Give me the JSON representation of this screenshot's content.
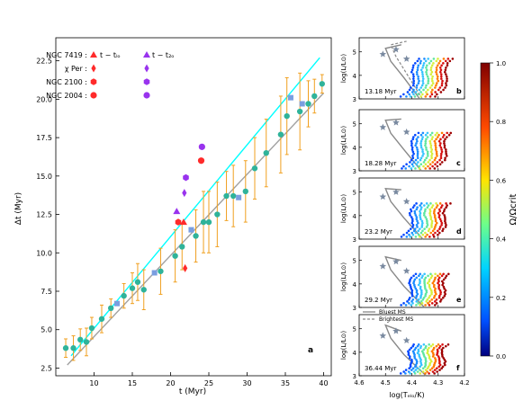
{
  "chart_data": [
    {
      "panel": "a",
      "type": "scatter",
      "xlabel": "t (Myr)",
      "ylabel": "Δt (Myr)",
      "xlim": [
        5,
        41
      ],
      "ylim": [
        2,
        24
      ],
      "xticks": [
        10,
        15,
        20,
        25,
        30,
        35,
        40
      ],
      "yticks": [
        2.5,
        5.0,
        7.5,
        10.0,
        12.5,
        15.0,
        17.5,
        20.0,
        22.5
      ],
      "grid": false,
      "legend_position": "top-left",
      "legend": {
        "rows": [
          {
            "label": "NGC 7419 :",
            "a": "t − tₗₒ",
            "b": "t − t₂ₒ"
          },
          {
            "label": "χ Per :",
            "a": "",
            "b": ""
          },
          {
            "label": "NGC 2100 :",
            "a": "",
            "b": ""
          },
          {
            "label": "NGC 2004 :",
            "a": "",
            "b": ""
          }
        ]
      },
      "lines": [
        {
          "name": "cyan",
          "color": "#00ffff",
          "x": [
            7,
            39.5
          ],
          "y": [
            3.3,
            22.7
          ]
        },
        {
          "name": "gray",
          "color": "#a0a0a0",
          "x": [
            6.5,
            40
          ],
          "y": [
            2.7,
            20.4
          ]
        }
      ],
      "points": [
        {
          "x": 6.3,
          "y": 3.8,
          "err": 0.6
        },
        {
          "x": 7.3,
          "y": 3.8,
          "err": 0.8
        },
        {
          "x": 8.2,
          "y": 4.35,
          "err": 0.7
        },
        {
          "x": 9.0,
          "y": 4.2,
          "err": 0.9
        },
        {
          "x": 9.7,
          "y": 5.1,
          "err": 0.7
        },
        {
          "x": 11.0,
          "y": 5.7,
          "err": 0.9
        },
        {
          "x": 12.2,
          "y": 6.4,
          "err": 0.6
        },
        {
          "x": 13.9,
          "y": 7.2,
          "err": 0.8
        },
        {
          "x": 15.0,
          "y": 7.7,
          "err": 1.0
        },
        {
          "x": 15.7,
          "y": 8.1,
          "err": 1.2
        },
        {
          "x": 16.5,
          "y": 7.6,
          "err": 1.3
        },
        {
          "x": 18.7,
          "y": 8.8,
          "err": 1.5
        },
        {
          "x": 20.6,
          "y": 9.8,
          "err": 1.7
        },
        {
          "x": 21.5,
          "y": 10.4,
          "err": 1.5
        },
        {
          "x": 23.3,
          "y": 11.1,
          "err": 1.7
        },
        {
          "x": 24.3,
          "y": 12.0,
          "err": 2.0
        },
        {
          "x": 25.0,
          "y": 12.0,
          "err": 2.0
        },
        {
          "x": 26.1,
          "y": 12.5,
          "err": 2.1
        },
        {
          "x": 27.3,
          "y": 13.7,
          "err": 1.6
        },
        {
          "x": 28.2,
          "y": 13.7,
          "err": 2.0
        },
        {
          "x": 29.8,
          "y": 14.0,
          "err": 2.0
        },
        {
          "x": 31.0,
          "y": 15.5,
          "err": 2.0
        },
        {
          "x": 32.5,
          "y": 16.5,
          "err": 2.2
        },
        {
          "x": 34.4,
          "y": 17.7,
          "err": 2.5
        },
        {
          "x": 35.2,
          "y": 18.9,
          "err": 2.5
        },
        {
          "x": 36.9,
          "y": 19.2,
          "err": 2.5
        },
        {
          "x": 38.0,
          "y": 19.7,
          "err": 1.5
        },
        {
          "x": 38.8,
          "y": 20.2,
          "err": 1.1
        },
        {
          "x": 39.8,
          "y": 21.0,
          "err": 0.6
        }
      ],
      "squares": [
        {
          "x": 13.0,
          "y": 6.7
        },
        {
          "x": 17.9,
          "y": 8.7
        },
        {
          "x": 22.7,
          "y": 11.5
        },
        {
          "x": 28.9,
          "y": 13.6
        },
        {
          "x": 35.7,
          "y": 20.1
        },
        {
          "x": 37.2,
          "y": 19.7
        }
      ],
      "markers": [
        {
          "shape": "triangle",
          "color": "#ff2a2a",
          "x": 21.7,
          "y": 12.0
        },
        {
          "shape": "triangle",
          "color": "#9933ee",
          "x": 20.8,
          "y": 12.7
        },
        {
          "shape": "diamond",
          "color": "#ff2a2a",
          "x": 21.9,
          "y": 9.0
        },
        {
          "shape": "diamond",
          "color": "#9933ee",
          "x": 21.8,
          "y": 13.9
        },
        {
          "shape": "hexagon",
          "color": "#ff2a2a",
          "x": 21.0,
          "y": 12.0
        },
        {
          "shape": "hexagon",
          "color": "#9933ee",
          "x": 22.0,
          "y": 14.9
        },
        {
          "shape": "circle",
          "color": "#ff2a2a",
          "x": 24.0,
          "y": 16.0
        },
        {
          "shape": "circle",
          "color": "#9933ee",
          "x": 24.1,
          "y": 16.9
        }
      ],
      "annotation": "a"
    },
    {
      "type": "scatter",
      "xlabel": "log(Tₑₗₒ/K)",
      "ylabel": "log(L/L⊙)",
      "xlim": [
        4.6,
        4.2
      ],
      "ylim": [
        3,
        5.6
      ],
      "xticks": [
        4.6,
        4.5,
        4.4,
        4.3,
        4.2
      ],
      "yticks": [
        3,
        4,
        5
      ],
      "panels": [
        {
          "id": "b",
          "age": "13.18 Myr"
        },
        {
          "id": "c",
          "age": "18.28 Myr"
        },
        {
          "id": "d",
          "age": "23.2 Myr"
        },
        {
          "id": "e",
          "age": "29.2 Myr"
        },
        {
          "id": "f",
          "age": "36.44 Myr"
        }
      ],
      "legend": {
        "items": [
          "Bluest MS",
          "Brightest MS"
        ]
      }
    }
  ],
  "colorbar": {
    "label": "Ω/Ωcrit",
    "range": [
      0,
      1
    ],
    "ticks": [
      "0.0",
      "0.2",
      "0.4",
      "0.6",
      "0.8",
      "1.0"
    ]
  },
  "panel_letters": [
    "a",
    "b",
    "c",
    "d",
    "e",
    "f"
  ]
}
